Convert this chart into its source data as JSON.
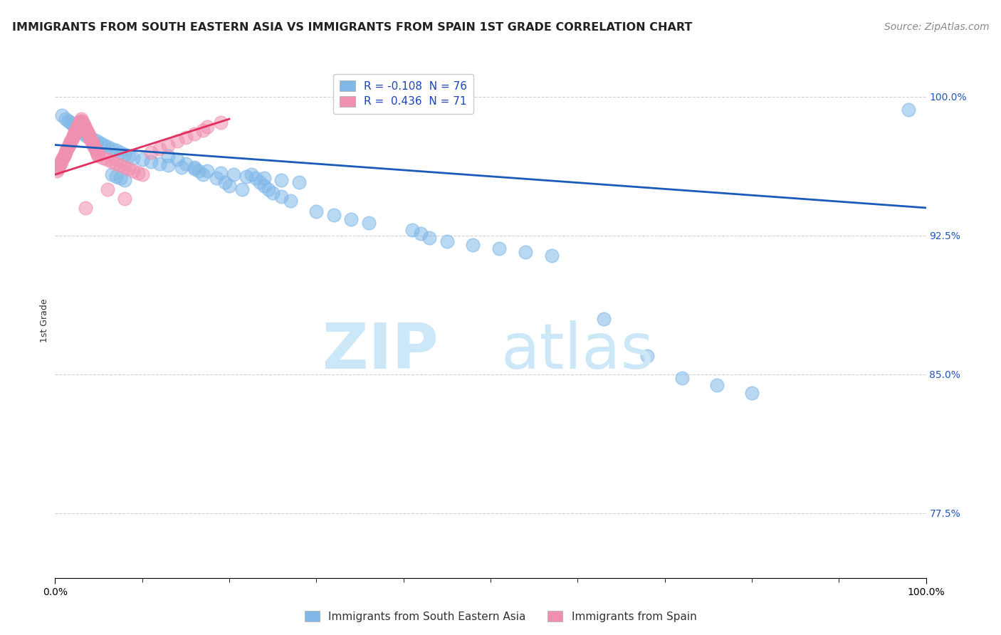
{
  "title": "IMMIGRANTS FROM SOUTH EASTERN ASIA VS IMMIGRANTS FROM SPAIN 1ST GRADE CORRELATION CHART",
  "source": "Source: ZipAtlas.com",
  "ylabel": "1st Grade",
  "xlim": [
    0.0,
    1.0
  ],
  "ylim": [
    0.74,
    1.018
  ],
  "yticks": [
    0.775,
    0.85,
    0.925,
    1.0
  ],
  "ytick_labels": [
    "77.5%",
    "85.0%",
    "92.5%",
    "100.0%"
  ],
  "xtick_labels": [
    "0.0%",
    "100.0%"
  ],
  "legend_entries": [
    {
      "label": "R = -0.108  N = 76",
      "color": "#a8c8f0"
    },
    {
      "label": "R =  0.436  N = 71",
      "color": "#f0a8c0"
    }
  ],
  "legend2": [
    {
      "label": "Immigrants from South Eastern Asia",
      "color": "#a8c8f0"
    },
    {
      "label": "Immigrants from Spain",
      "color": "#f0a8c0"
    }
  ],
  "blue_x": [
    0.008,
    0.012,
    0.015,
    0.018,
    0.02,
    0.023,
    0.025,
    0.028,
    0.03,
    0.033,
    0.036,
    0.04,
    0.044,
    0.048,
    0.052,
    0.056,
    0.06,
    0.065,
    0.07,
    0.075,
    0.08,
    0.085,
    0.09,
    0.1,
    0.11,
    0.12,
    0.13,
    0.145,
    0.16,
    0.175,
    0.19,
    0.205,
    0.22,
    0.24,
    0.26,
    0.28,
    0.065,
    0.07,
    0.075,
    0.08,
    0.13,
    0.14,
    0.15,
    0.16,
    0.165,
    0.17,
    0.185,
    0.195,
    0.2,
    0.215,
    0.225,
    0.23,
    0.235,
    0.24,
    0.245,
    0.25,
    0.26,
    0.27,
    0.3,
    0.32,
    0.34,
    0.36,
    0.41,
    0.42,
    0.43,
    0.45,
    0.48,
    0.51,
    0.54,
    0.57,
    0.63,
    0.68,
    0.72,
    0.76,
    0.8,
    0.98
  ],
  "blue_y": [
    0.99,
    0.988,
    0.987,
    0.986,
    0.985,
    0.984,
    0.983,
    0.982,
    0.981,
    0.98,
    0.979,
    0.978,
    0.977,
    0.976,
    0.975,
    0.974,
    0.973,
    0.972,
    0.971,
    0.97,
    0.969,
    0.968,
    0.967,
    0.966,
    0.965,
    0.964,
    0.963,
    0.962,
    0.961,
    0.96,
    0.959,
    0.958,
    0.957,
    0.956,
    0.955,
    0.954,
    0.958,
    0.957,
    0.956,
    0.955,
    0.968,
    0.966,
    0.964,
    0.962,
    0.96,
    0.958,
    0.956,
    0.954,
    0.952,
    0.95,
    0.958,
    0.956,
    0.954,
    0.952,
    0.95,
    0.948,
    0.946,
    0.944,
    0.938,
    0.936,
    0.934,
    0.932,
    0.928,
    0.926,
    0.924,
    0.922,
    0.92,
    0.918,
    0.916,
    0.914,
    0.88,
    0.86,
    0.848,
    0.844,
    0.84,
    0.993
  ],
  "pink_x": [
    0.002,
    0.003,
    0.004,
    0.005,
    0.006,
    0.007,
    0.008,
    0.009,
    0.01,
    0.011,
    0.012,
    0.013,
    0.014,
    0.015,
    0.016,
    0.017,
    0.018,
    0.019,
    0.02,
    0.021,
    0.022,
    0.023,
    0.024,
    0.025,
    0.026,
    0.027,
    0.028,
    0.029,
    0.03,
    0.031,
    0.032,
    0.033,
    0.034,
    0.035,
    0.036,
    0.037,
    0.038,
    0.039,
    0.04,
    0.041,
    0.042,
    0.043,
    0.044,
    0.045,
    0.046,
    0.047,
    0.048,
    0.049,
    0.05,
    0.055,
    0.06,
    0.065,
    0.07,
    0.075,
    0.08,
    0.085,
    0.09,
    0.095,
    0.1,
    0.11,
    0.12,
    0.13,
    0.14,
    0.15,
    0.16,
    0.17,
    0.175,
    0.19,
    0.035,
    0.06,
    0.08
  ],
  "pink_y": [
    0.96,
    0.961,
    0.962,
    0.963,
    0.964,
    0.965,
    0.966,
    0.967,
    0.968,
    0.969,
    0.97,
    0.971,
    0.972,
    0.973,
    0.974,
    0.975,
    0.976,
    0.977,
    0.978,
    0.979,
    0.98,
    0.981,
    0.982,
    0.983,
    0.984,
    0.985,
    0.986,
    0.987,
    0.988,
    0.987,
    0.986,
    0.985,
    0.984,
    0.983,
    0.982,
    0.981,
    0.98,
    0.979,
    0.978,
    0.977,
    0.976,
    0.975,
    0.974,
    0.973,
    0.972,
    0.971,
    0.97,
    0.969,
    0.968,
    0.967,
    0.966,
    0.965,
    0.964,
    0.963,
    0.962,
    0.961,
    0.96,
    0.959,
    0.958,
    0.97,
    0.972,
    0.974,
    0.976,
    0.978,
    0.98,
    0.982,
    0.984,
    0.986,
    0.94,
    0.95,
    0.945
  ],
  "blue_trend_x": [
    0.0,
    1.0
  ],
  "blue_trend_y": [
    0.974,
    0.94
  ],
  "pink_trend_x": [
    0.0,
    0.2
  ],
  "pink_trend_y": [
    0.958,
    0.988
  ],
  "scatter_blue": "#80b8e8",
  "scatter_pink": "#f090b0",
  "line_blue": "#1a5ab8",
  "line_pink": "#e03060",
  "grid_color": "#cccccc",
  "bg_color": "#ffffff",
  "watermark_color": "#cce8f8",
  "title_fontsize": 11.5,
  "source_fontsize": 10,
  "ylabel_fontsize": 9,
  "tick_fontsize": 10,
  "legend_fontsize": 11
}
